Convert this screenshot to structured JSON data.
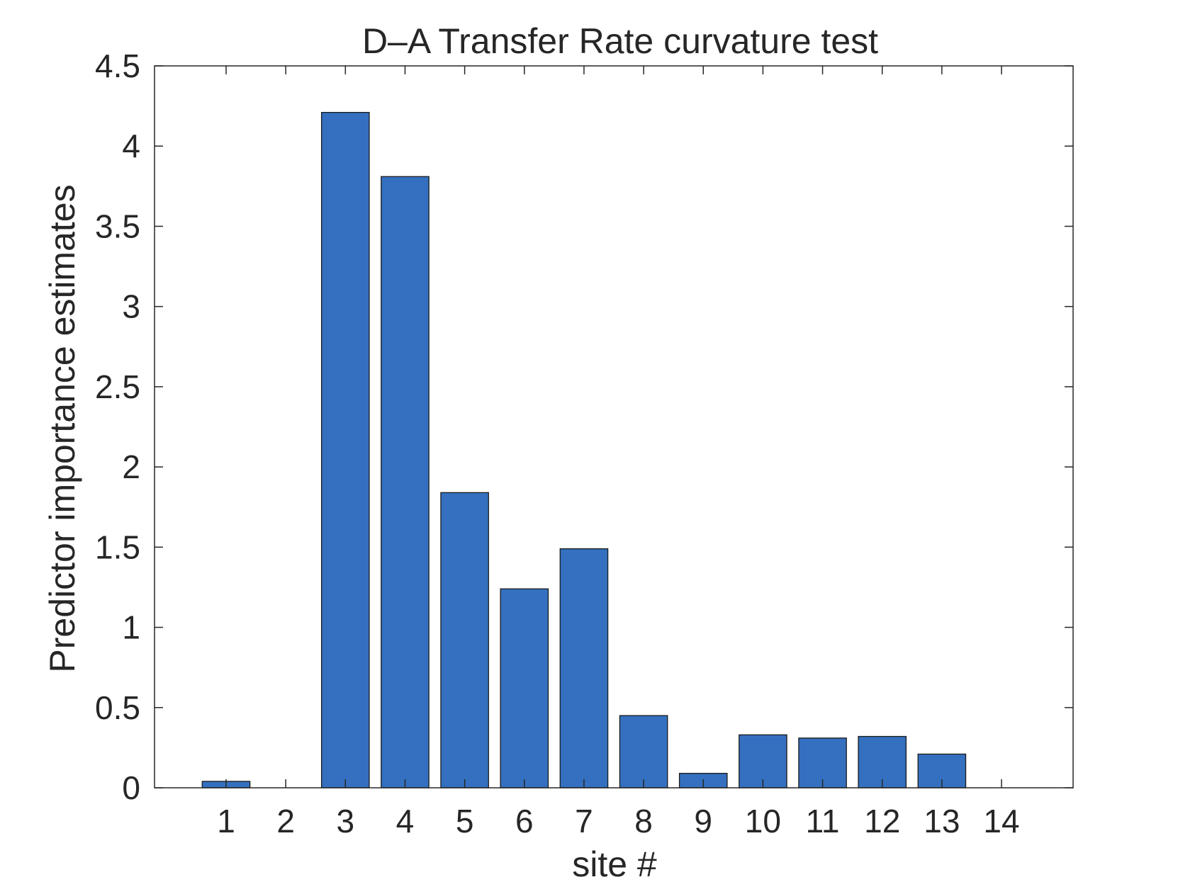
{
  "chart_data": {
    "type": "bar",
    "title": "D–A Transfer Rate curvature test",
    "xlabel": "site #",
    "ylabel": "Predictor importance estimates",
    "categories": [
      "1",
      "2",
      "3",
      "4",
      "5",
      "6",
      "7",
      "8",
      "9",
      "10",
      "11",
      "12",
      "13",
      "14"
    ],
    "values": [
      0.04,
      0,
      4.21,
      3.81,
      1.84,
      1.24,
      1.49,
      0.45,
      0.09,
      0.33,
      0.31,
      0.32,
      0.21,
      0
    ],
    "xlim": [
      -0.2,
      15.2
    ],
    "ylim": [
      0,
      4.5
    ],
    "yticks": [
      "0",
      "0.5",
      "1",
      "1.5",
      "2",
      "2.5",
      "3",
      "3.5",
      "4",
      "4.5"
    ],
    "bar_color": "#3470bf",
    "grid": false,
    "legend": "none"
  }
}
